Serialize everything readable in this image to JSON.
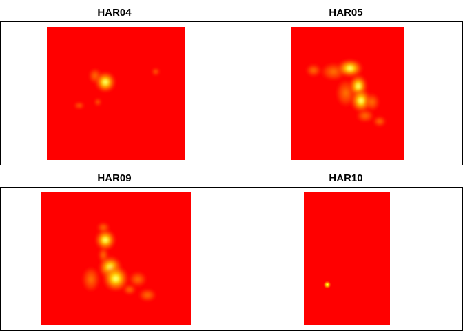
{
  "chart_data": [
    {
      "type": "heatmap",
      "title": "HAR04",
      "colormap": [
        "#ff0000",
        "#ff5500",
        "#ffa500",
        "#ffff00",
        "#ffffe0"
      ],
      "background": "#ff0000",
      "hotspots": [
        {
          "cx": 0.43,
          "cy": 0.42,
          "intensity": 1.0
        },
        {
          "cx": 0.36,
          "cy": 0.33,
          "intensity": 0.15
        },
        {
          "cx": 0.8,
          "cy": 0.34,
          "intensity": 0.12
        },
        {
          "cx": 0.24,
          "cy": 0.59,
          "intensity": 0.1
        },
        {
          "cx": 0.37,
          "cy": 0.57,
          "intensity": 0.1
        }
      ]
    },
    {
      "type": "heatmap",
      "title": "HAR05",
      "colormap": [
        "#ff0000",
        "#ff5500",
        "#ffa500",
        "#ffff00",
        "#ffffe0"
      ],
      "background": "#ff0000",
      "hotspots": [
        {
          "cx": 0.52,
          "cy": 0.31,
          "intensity": 0.45
        },
        {
          "cx": 0.37,
          "cy": 0.33,
          "intensity": 0.3
        },
        {
          "cx": 0.6,
          "cy": 0.45,
          "intensity": 0.9
        },
        {
          "cx": 0.62,
          "cy": 0.56,
          "intensity": 1.0
        },
        {
          "cx": 0.72,
          "cy": 0.56,
          "intensity": 0.35
        },
        {
          "cx": 0.49,
          "cy": 0.49,
          "intensity": 0.25
        },
        {
          "cx": 0.66,
          "cy": 0.67,
          "intensity": 0.3
        },
        {
          "cx": 0.8,
          "cy": 0.71,
          "intensity": 0.25
        },
        {
          "cx": 0.2,
          "cy": 0.32,
          "intensity": 0.2
        }
      ]
    },
    {
      "type": "heatmap",
      "title": "HAR09",
      "colormap": [
        "#ff0000",
        "#ff5500",
        "#ffa500",
        "#ffff00",
        "#ffffe0"
      ],
      "background": "#ff0000",
      "hotspots": [
        {
          "cx": 0.42,
          "cy": 0.33,
          "intensity": 0.65
        },
        {
          "cx": 0.46,
          "cy": 0.59,
          "intensity": 0.85
        },
        {
          "cx": 0.5,
          "cy": 0.65,
          "intensity": 1.0
        },
        {
          "cx": 0.33,
          "cy": 0.66,
          "intensity": 0.3
        },
        {
          "cx": 0.66,
          "cy": 0.68,
          "intensity": 0.25
        },
        {
          "cx": 0.71,
          "cy": 0.76,
          "intensity": 0.2
        },
        {
          "cx": 0.42,
          "cy": 0.47,
          "intensity": 0.2
        }
      ]
    },
    {
      "type": "heatmap",
      "title": "HAR10",
      "colormap": [
        "#ff0000",
        "#ff5500",
        "#ffa500",
        "#ffff00",
        "#ffffe0"
      ],
      "background": "#ff0000",
      "hotspots": [
        {
          "cx": 0.27,
          "cy": 0.7,
          "intensity": 1.0,
          "sharp": true
        }
      ]
    }
  ]
}
